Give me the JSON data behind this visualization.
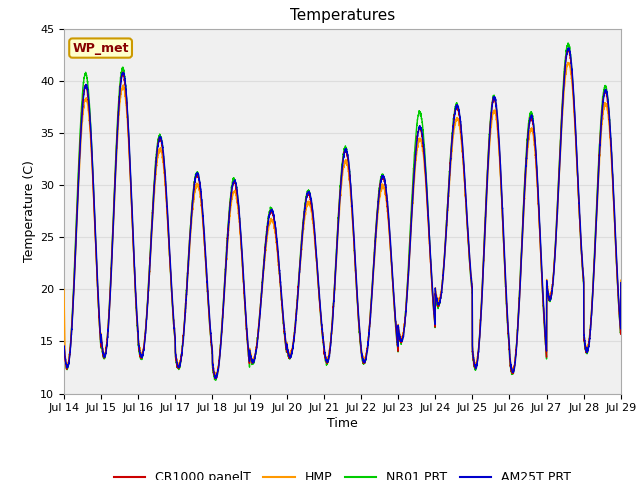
{
  "title": "Temperatures",
  "xlabel": "Time",
  "ylabel": "Temperature (C)",
  "ylim": [
    10,
    45
  ],
  "series_colors": {
    "CR1000 panelT": "#cc0000",
    "HMP": "#ff9900",
    "NR01 PRT": "#00cc00",
    "AM25T PRT": "#0000cc"
  },
  "annotation_text": "WP_met",
  "annotation_bg": "#ffffcc",
  "annotation_border": "#cc9900",
  "annotation_text_color": "#880000",
  "yticks": [
    10,
    15,
    20,
    25,
    30,
    35,
    40,
    45
  ],
  "grid_color": "#dddddd",
  "plot_bg_color": "#f0f0f0",
  "fig_bg_color": "#ffffff",
  "x_tick_labels": [
    "Jul 14",
    "Jul 15",
    "Jul 16",
    "Jul 17",
    "Jul 18",
    "Jul 19",
    "Jul 20",
    "Jul 21",
    "Jul 22",
    "Jul 23",
    "Jul 24",
    "Jul 25",
    "Jul 26",
    "Jul 27",
    "Jul 28",
    "Jul 29"
  ],
  "daily_peaks": [
    39.5,
    40.7,
    34.5,
    31.0,
    30.3,
    27.5,
    29.2,
    33.3,
    30.8,
    35.5,
    37.5,
    38.3,
    36.5,
    43.0,
    39.0,
    20.5
  ],
  "daily_mins": [
    12.5,
    13.5,
    13.5,
    12.5,
    11.5,
    13.0,
    13.5,
    13.0,
    13.0,
    15.0,
    18.5,
    12.5,
    12.0,
    19.0,
    14.0,
    20.5
  ],
  "nr01_peak_offsets": [
    1.2,
    0.5,
    0.3,
    0.2,
    0.3,
    0.2,
    0.2,
    0.3,
    0.2,
    1.5,
    0.2,
    0.2,
    0.5,
    0.5,
    0.5,
    0.0
  ],
  "linewidth": 1.0,
  "legend_fontsize": 9,
  "title_fontsize": 11,
  "axis_fontsize": 9,
  "tick_fontsize": 8
}
